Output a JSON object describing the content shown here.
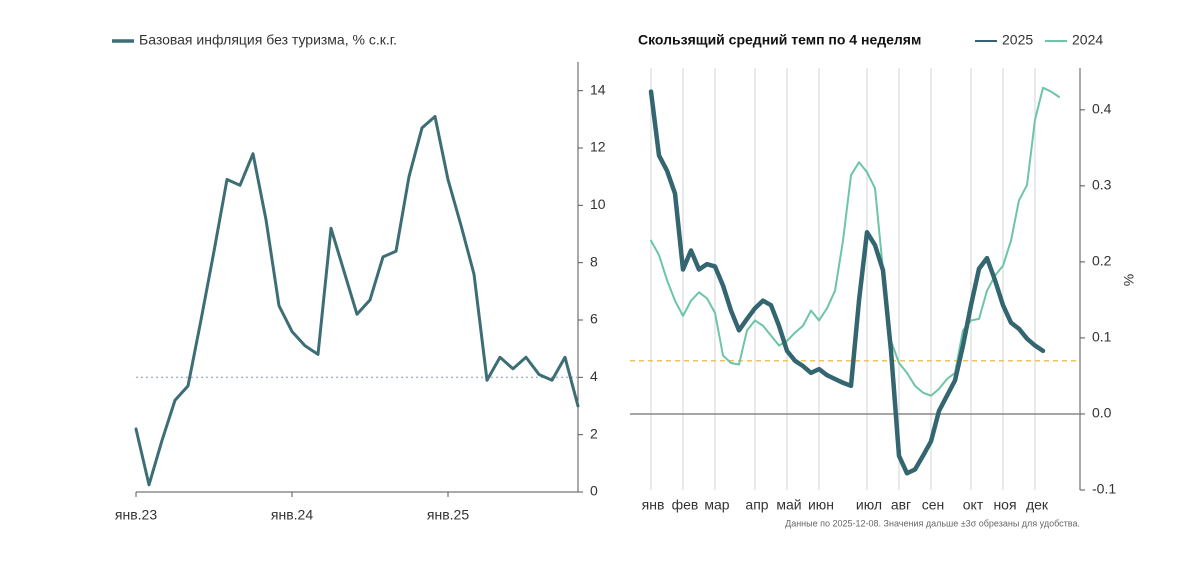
{
  "chart_data": [
    {
      "type": "line",
      "categories": [
        "янв.23",
        null,
        null,
        null,
        null,
        null,
        null,
        null,
        null,
        null,
        null,
        null,
        "янв.24",
        null,
        null,
        null,
        null,
        null,
        null,
        null,
        null,
        null,
        null,
        null,
        "янв.25",
        null,
        null,
        null,
        null,
        null,
        null,
        null,
        null,
        null,
        null
      ],
      "series": [
        {
          "name": "Базовая инфляция без туризма, % с.к.г.",
          "color": "#3d6e75",
          "values": [
            2.2,
            0.25,
            1.8,
            3.2,
            3.7,
            6.0,
            8.4,
            10.9,
            10.7,
            11.8,
            9.5,
            6.5,
            5.6,
            5.1,
            4.8,
            9.2,
            7.7,
            6.2,
            6.7,
            8.2,
            8.4,
            11.0,
            12.7,
            13.1,
            10.9,
            9.3,
            7.6,
            3.9,
            4.7,
            4.3,
            4.7,
            4.1,
            3.9,
            4.7,
            3.0
          ]
        }
      ],
      "ylim": [
        0,
        15
      ],
      "yticks": [
        0,
        2,
        4,
        6,
        8,
        10,
        12,
        14
      ],
      "hlines": [
        {
          "value": 4,
          "color": "#a9b7cc",
          "dash": "2,3"
        }
      ]
    },
    {
      "type": "line",
      "title": "Скользящий средний темп по 4 неделям",
      "ylabel": "%",
      "note": "Данные по 2025-12-08. Значения дальше ±3σ обрезаны для удобства.",
      "categories": [
        "янв",
        null,
        null,
        null,
        "фев",
        null,
        null,
        null,
        "мар",
        null,
        null,
        null,
        null,
        "апр",
        null,
        null,
        null,
        "май",
        null,
        null,
        null,
        "июн",
        null,
        null,
        null,
        null,
        null,
        "июл",
        null,
        null,
        null,
        "авг",
        null,
        null,
        null,
        "сен",
        null,
        null,
        null,
        null,
        "окт",
        null,
        null,
        null,
        "ноя",
        null,
        null,
        null,
        "дек",
        null,
        null,
        null
      ],
      "series": [
        {
          "name": "2025",
          "color": "#336670",
          "width": 4.5,
          "values": [
            0.424,
            0.34,
            0.32,
            0.29,
            0.19,
            0.215,
            0.19,
            0.197,
            0.194,
            0.169,
            0.136,
            0.11,
            0.125,
            0.139,
            0.149,
            0.143,
            0.116,
            0.083,
            0.07,
            0.063,
            0.054,
            0.059,
            0.051,
            0.046,
            0.041,
            0.037,
            0.149,
            0.239,
            0.222,
            0.189,
            0.083,
            -0.055,
            -0.078,
            -0.073,
            -0.055,
            -0.036,
            0.004,
            0.024,
            0.044,
            0.09,
            0.143,
            0.191,
            0.205,
            0.176,
            0.143,
            0.12,
            0.112,
            0.099,
            0.09,
            0.083,
            null,
            null
          ]
        },
        {
          "name": "2024",
          "color": "#6cc5a4",
          "width": 2,
          "values": [
            0.228,
            0.209,
            0.176,
            0.149,
            0.129,
            0.149,
            0.16,
            0.152,
            0.133,
            0.077,
            0.067,
            0.065,
            0.11,
            0.123,
            0.116,
            0.103,
            0.09,
            0.096,
            0.107,
            0.116,
            0.136,
            0.123,
            0.139,
            0.162,
            0.228,
            0.314,
            0.331,
            0.318,
            0.297,
            0.189,
            0.096,
            0.067,
            0.054,
            0.037,
            0.028,
            0.024,
            0.033,
            0.046,
            0.054,
            0.11,
            0.123,
            0.125,
            0.162,
            0.182,
            0.195,
            0.228,
            0.281,
            0.301,
            0.387,
            0.429,
            0.424,
            0.417
          ]
        }
      ],
      "ylim": [
        -0.1,
        0.455
      ],
      "yticks": [
        -0.1,
        {
          "value": 0,
          "label": "0.0"
        },
        0.1,
        0.2,
        0.3,
        0.4
      ],
      "hlines": [
        {
          "value": 0,
          "color": "#888888",
          "dash": "none"
        },
        {
          "value": 0.07,
          "color": "#f2c35a",
          "dash": "5,4"
        }
      ],
      "grid": true
    }
  ]
}
